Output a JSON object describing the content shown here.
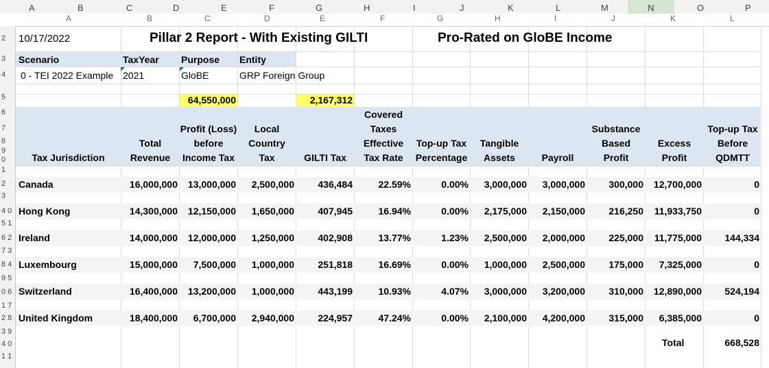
{
  "column_headers": [
    "A",
    "B",
    "C",
    "D",
    "E",
    "F",
    "G",
    "H",
    "I",
    "J",
    "K",
    "L",
    "M",
    "N",
    "O",
    "P"
  ],
  "report_columns": [
    "A",
    "B",
    "C",
    "D",
    "E",
    "F",
    "G",
    "H",
    "I",
    "J",
    "K",
    "L"
  ],
  "row_numbers": [
    "2",
    "3",
    "4",
    "5",
    "6",
    "7",
    "8",
    "9",
    "0",
    "1",
    "2",
    "3",
    "4 0",
    "5 1",
    "6 2",
    "7 3",
    "8 4",
    "9 5",
    "0 6",
    "1 7",
    "2 8",
    "3 9",
    "4 0",
    "1 1"
  ],
  "header": {
    "date": "10/17/2022",
    "title": "Pillar 2 Report - With Existing GILTI",
    "subtitle": "Pro-Rated on GloBE Income"
  },
  "scenario": {
    "labels": [
      "Scenario",
      "TaxYear",
      "Purpose",
      "Entity"
    ],
    "values": [
      "0 - TEI 2022 Example",
      "2021",
      "GloBE",
      "GRP Foreign Group"
    ]
  },
  "highlights": {
    "profit_total": "64,550,000",
    "gilti_total": "2,167,312"
  },
  "table": {
    "headers": [
      [
        "Tax Jurisdiction"
      ],
      [
        "Total",
        "Revenue"
      ],
      [
        "Profit (Loss)",
        "before",
        "Income Tax"
      ],
      [
        "Local",
        "Country",
        "Tax"
      ],
      [
        "GILTI Tax"
      ],
      [
        "Covered",
        "Taxes",
        "Effective",
        "Tax Rate"
      ],
      [
        "Top-up Tax",
        "Percentage"
      ],
      [
        "Tangible",
        "Assets"
      ],
      [
        "Payroll"
      ],
      [
        "Substance",
        "Based",
        "Profit"
      ],
      [
        "Excess",
        "Profit"
      ],
      [
        "Top-up Tax",
        "Before",
        "QDMTT"
      ]
    ],
    "rows": [
      [
        "Canada",
        "16,000,000",
        "13,000,000",
        "2,500,000",
        "436,484",
        "22.59%",
        "0.00%",
        "3,000,000",
        "3,000,000",
        "300,000",
        "12,700,000",
        "0"
      ],
      [
        "Hong Kong",
        "14,300,000",
        "12,150,000",
        "1,650,000",
        "407,945",
        "16.94%",
        "0.00%",
        "2,175,000",
        "2,150,000",
        "216,250",
        "11,933,750",
        "0"
      ],
      [
        "Ireland",
        "14,000,000",
        "12,000,000",
        "1,250,000",
        "402,908",
        "13.77%",
        "1.23%",
        "2,500,000",
        "2,000,000",
        "225,000",
        "11,775,000",
        "144,334"
      ],
      [
        "Luxembourg",
        "15,000,000",
        "7,500,000",
        "1,000,000",
        "251,818",
        "16.69%",
        "0.00%",
        "1,000,000",
        "2,500,000",
        "175,000",
        "7,325,000",
        "0"
      ],
      [
        "Switzerland",
        "16,400,000",
        "13,200,000",
        "1,000,000",
        "443,199",
        "10.93%",
        "4.07%",
        "3,000,000",
        "3,200,000",
        "310,000",
        "12,890,000",
        "524,194"
      ],
      [
        "United Kingdom",
        "18,400,000",
        "6,700,000",
        "2,940,000",
        "224,957",
        "47.24%",
        "0.00%",
        "2,100,000",
        "4,200,000",
        "315,000",
        "6,385,000",
        "0"
      ]
    ],
    "total_label": "Total",
    "total_value": "668,528"
  }
}
